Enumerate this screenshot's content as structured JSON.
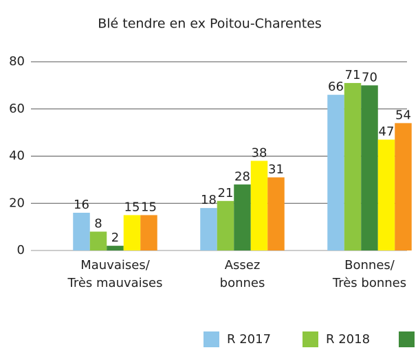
{
  "chart_data": {
    "type": "bar",
    "title": "Blé tendre en ex Poitou-Charentes",
    "categories": [
      [
        "Mauvaises/",
        "Très mauvaises"
      ],
      [
        "Assez",
        "bonnes"
      ],
      [
        "Bonnes/",
        "Très bonnes"
      ]
    ],
    "series": [
      {
        "name": "R 2017",
        "color": "#8ec6ea",
        "values": [
          16,
          18,
          66
        ]
      },
      {
        "name": "R 2018",
        "color": "#8dc63f",
        "values": [
          8,
          21,
          71
        ]
      },
      {
        "color": "#3f8b3a",
        "values": [
          2,
          28,
          70
        ]
      },
      {
        "color": "#fff200",
        "values": [
          15,
          38,
          47
        ]
      },
      {
        "color": "#f7941d",
        "values": [
          15,
          31,
          54
        ]
      }
    ],
    "ylim": [
      0,
      80
    ],
    "yticks": [
      0,
      20,
      40,
      60,
      80
    ],
    "grid": true
  }
}
